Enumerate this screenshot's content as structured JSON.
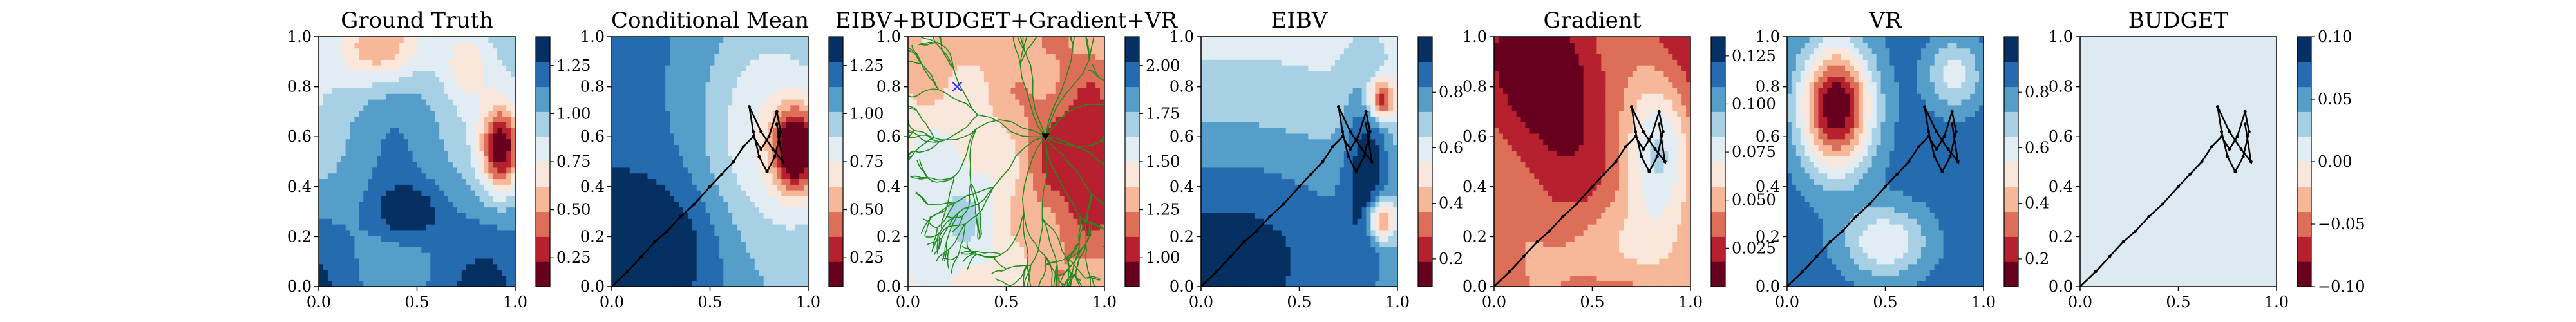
{
  "chart_data": [
    {
      "type": "heatmap",
      "title": "Ground Truth",
      "xlim": [
        0,
        1
      ],
      "ylim": [
        0,
        1
      ],
      "xticks": [
        "0.0",
        "0.5",
        "1.0"
      ],
      "yticks": [
        "0.0",
        "0.2",
        "0.4",
        "0.6",
        "0.8",
        "1.0"
      ],
      "colormap": "RdBu",
      "colorbar_range": [
        0.1,
        1.4
      ],
      "colorbar_ticks": [
        "0.25",
        "0.50",
        "0.75",
        "1.00",
        "1.25"
      ],
      "colorbar_tick_values": [
        0.25,
        0.5,
        0.75,
        1.0,
        1.25
      ],
      "field": "ground_truth",
      "overlay": "none"
    },
    {
      "type": "heatmap",
      "title": "Conditional Mean",
      "xlim": [
        0,
        1
      ],
      "ylim": [
        0,
        1
      ],
      "xticks": [
        "0.0",
        "0.5",
        "1.0"
      ],
      "yticks": [
        "0.0",
        "0.2",
        "0.4",
        "0.6",
        "0.8",
        "1.0"
      ],
      "colormap": "RdBu",
      "colorbar_range": [
        0.1,
        1.4
      ],
      "colorbar_ticks": [
        "0.25",
        "0.50",
        "0.75",
        "1.00",
        "1.25"
      ],
      "colorbar_tick_values": [
        0.25,
        0.5,
        0.75,
        1.0,
        1.25
      ],
      "field": "conditional_mean",
      "overlay": "path"
    },
    {
      "type": "heatmap",
      "title": "EIBV+BUDGET+Gradient+VR",
      "xlim": [
        0,
        1
      ],
      "ylim": [
        0,
        1
      ],
      "xticks": [
        "0.0",
        "0.5",
        "1.0"
      ],
      "yticks": [
        "0.0",
        "0.2",
        "0.4",
        "0.6",
        "0.8",
        "1.0"
      ],
      "colormap": "RdBu",
      "colorbar_range": [
        0.85,
        2.15
      ],
      "colorbar_ticks": [
        "1.00",
        "1.25",
        "1.50",
        "1.75",
        "2.00"
      ],
      "colorbar_tick_values": [
        1.0,
        1.25,
        1.5,
        1.75,
        2.0
      ],
      "field": "cost_total",
      "overlay": "tree",
      "tree_root": [
        0.7,
        0.6
      ],
      "target_marker": [
        0.25,
        0.8
      ]
    },
    {
      "type": "heatmap",
      "title": "EIBV",
      "xlim": [
        0,
        1
      ],
      "ylim": [
        0,
        1
      ],
      "xticks": [
        "0.0",
        "0.5",
        "1.0"
      ],
      "yticks": [
        "0.0",
        "0.2",
        "0.4",
        "0.6",
        "0.8",
        "1.0"
      ],
      "colormap": "RdBu",
      "colorbar_range": [
        0.1,
        1.0
      ],
      "colorbar_ticks": [
        "0.2",
        "0.4",
        "0.6",
        "0.8"
      ],
      "colorbar_tick_values": [
        0.2,
        0.4,
        0.6,
        0.8
      ],
      "field": "eibv",
      "overlay": "path"
    },
    {
      "type": "heatmap",
      "title": "Gradient",
      "xlim": [
        0,
        1
      ],
      "ylim": [
        0,
        1
      ],
      "xticks": [
        "0.0",
        "0.5",
        "1.0"
      ],
      "yticks": [
        "0.0",
        "0.2",
        "0.4",
        "0.6",
        "0.8",
        "1.0"
      ],
      "colormap": "RdBu",
      "colorbar_range": [
        0.005,
        0.135
      ],
      "colorbar_ticks": [
        "0.025",
        "0.050",
        "0.075",
        "0.100",
        "0.125"
      ],
      "colorbar_tick_values": [
        0.025,
        0.05,
        0.075,
        0.1,
        0.125
      ],
      "field": "gradient",
      "overlay": "path"
    },
    {
      "type": "heatmap",
      "title": "VR",
      "xlim": [
        0,
        1
      ],
      "ylim": [
        0,
        1
      ],
      "xticks": [
        "0.0",
        "0.5",
        "1.0"
      ],
      "yticks": [
        "0.0",
        "0.2",
        "0.4",
        "0.6",
        "0.8",
        "1.0"
      ],
      "colormap": "RdBu",
      "colorbar_range": [
        0.1,
        1.0
      ],
      "colorbar_ticks": [
        "0.2",
        "0.4",
        "0.6",
        "0.8"
      ],
      "colorbar_tick_values": [
        0.2,
        0.4,
        0.6,
        0.8
      ],
      "field": "vr",
      "overlay": "path"
    },
    {
      "type": "heatmap",
      "title": "BUDGET",
      "xlim": [
        0,
        1
      ],
      "ylim": [
        0,
        1
      ],
      "xticks": [
        "0.0",
        "0.5",
        "1.0"
      ],
      "yticks": [
        "0.0",
        "0.2",
        "0.4",
        "0.6",
        "0.8",
        "1.0"
      ],
      "colormap": "RdBu",
      "colorbar_range": [
        -0.1,
        0.1
      ],
      "colorbar_ticks": [
        "−0.10",
        "−0.05",
        "0.00",
        "0.05",
        "0.10"
      ],
      "colorbar_tick_values": [
        -0.1,
        -0.05,
        0.0,
        0.05,
        0.1
      ],
      "field": "budget",
      "overlay": "path"
    }
  ],
  "trajectory": {
    "x": [
      0.0,
      0.08,
      0.15,
      0.22,
      0.28,
      0.35,
      0.42,
      0.5,
      0.56,
      0.62,
      0.67,
      0.72,
      0.76,
      0.8,
      0.84,
      0.86,
      0.83,
      0.79,
      0.75,
      0.72,
      0.7,
      0.76,
      0.82,
      0.87,
      0.85,
      0.84
    ],
    "y": [
      0.0,
      0.06,
      0.12,
      0.18,
      0.22,
      0.28,
      0.33,
      0.4,
      0.45,
      0.5,
      0.56,
      0.6,
      0.55,
      0.6,
      0.7,
      0.62,
      0.52,
      0.46,
      0.52,
      0.62,
      0.72,
      0.62,
      0.55,
      0.5,
      0.6,
      0.65
    ]
  },
  "colors": {
    "path": "#000000",
    "tree": "#1e8c1e",
    "target_marker": "#3333ff",
    "budget_fill": "#dde9f1"
  }
}
